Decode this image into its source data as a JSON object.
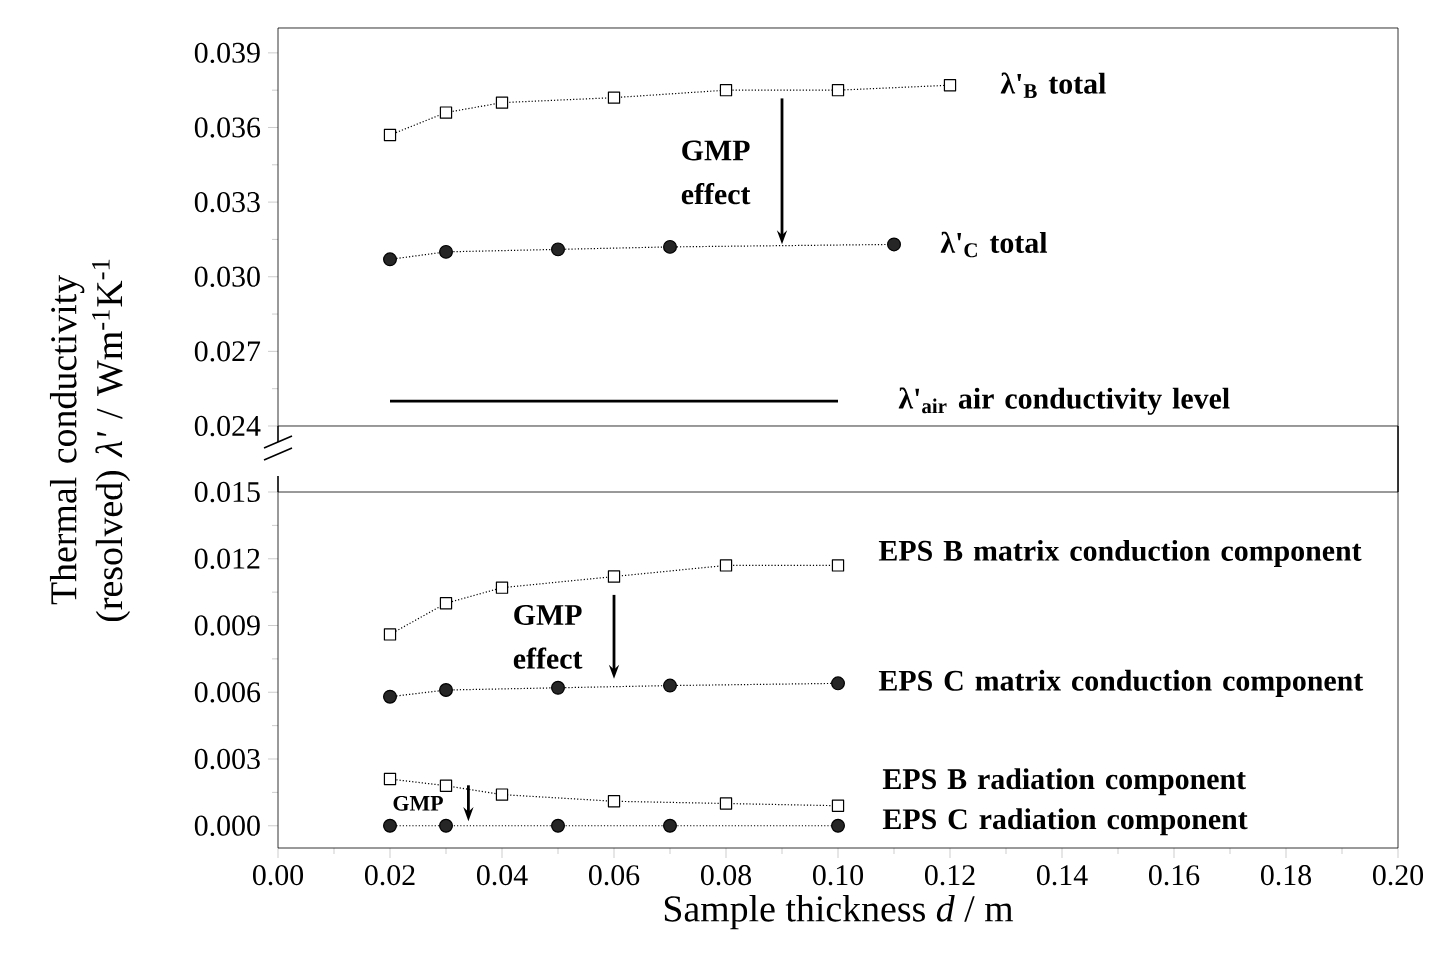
{
  "chart_data": [
    {
      "type": "line",
      "ylabel": "Thermal conductivity (resolved) *λ'* / Wm$^{-1}$K$^{-1}$",
      "xlim": [
        0,
        0.2
      ],
      "ylim": [
        0.024,
        0.04
      ],
      "tick_labels": "y",
      "yticks": [
        {
          "value": 0.024,
          "label": "0.024"
        },
        {
          "value": 0.027,
          "label": "0.027"
        },
        {
          "value": 0.03,
          "label": "0.030"
        },
        {
          "value": 0.033,
          "label": "0.033"
        },
        {
          "value": 0.036,
          "label": "0.036"
        },
        {
          "value": 0.039,
          "label": "0.039"
        }
      ],
      "series": [
        {
          "name": "λ'$_{B}$ total",
          "color": "#000000",
          "marker": "square",
          "line_style": "dotted",
          "x": [
            0.02,
            0.03,
            0.04,
            0.06,
            0.08,
            0.1,
            0.12
          ],
          "values": [
            0.0357,
            0.0366,
            0.037,
            0.0372,
            0.0375,
            0.0375,
            0.0377
          ]
        },
        {
          "name": "λ'$_{C}$ total",
          "color": "#000000",
          "marker": "circle",
          "line_style": "dotted",
          "x": [
            0.02,
            0.03,
            0.05,
            0.07,
            0.11
          ],
          "values": [
            0.0307,
            0.031,
            0.0311,
            0.0312,
            0.0313
          ]
        },
        {
          "name": "λ'$_{air}$ air conductivity level",
          "color": "#000000",
          "marker": "none",
          "line_style": "solid",
          "x": [
            0.02,
            0.1
          ],
          "values": [
            0.025,
            0.025
          ]
        }
      ],
      "annotations": [
        {
          "text": "GMP effect",
          "x": 0.09,
          "y": 0.0313
        }
      ]
    },
    {
      "type": "line",
      "xlabel": "Sample thickness *d* / m",
      "xlim": [
        0,
        0.2
      ],
      "ylim": [
        -0.001,
        0.015
      ],
      "xticks": [
        {
          "value": 0,
          "label": "0.00"
        },
        {
          "value": 0.02,
          "label": "0.02"
        },
        {
          "value": 0.04,
          "label": "0.04"
        },
        {
          "value": 0.06,
          "label": "0.06"
        },
        {
          "value": 0.08,
          "label": "0.08"
        },
        {
          "value": 0.1,
          "label": "0.10"
        },
        {
          "value": 0.12,
          "label": "0.12"
        },
        {
          "value": 0.14,
          "label": "0.14"
        },
        {
          "value": 0.16,
          "label": "0.16"
        },
        {
          "value": 0.18,
          "label": "0.18"
        },
        {
          "value": 0.2,
          "label": "0.20"
        }
      ],
      "yticks": [
        {
          "value": 0,
          "label": "0.000"
        },
        {
          "value": 0.003,
          "label": "0.003"
        },
        {
          "value": 0.006,
          "label": "0.006"
        },
        {
          "value": 0.009,
          "label": "0.009"
        },
        {
          "value": 0.012,
          "label": "0.012"
        },
        {
          "value": 0.015,
          "label": "0.015"
        }
      ],
      "series": [
        {
          "name": "EPS B matrix conduction component",
          "color": "#000000",
          "marker": "square",
          "line_style": "dotted",
          "x": [
            0.02,
            0.03,
            0.04,
            0.06,
            0.08,
            0.1
          ],
          "values": [
            0.0086,
            0.01,
            0.0107,
            0.0112,
            0.0117,
            0.0117
          ]
        },
        {
          "name": "EPS C matrix conduction component",
          "color": "#000000",
          "marker": "circle",
          "line_style": "dotted",
          "x": [
            0.02,
            0.03,
            0.05,
            0.07,
            0.1
          ],
          "values": [
            0.0058,
            0.0061,
            0.0062,
            0.0063,
            0.0064
          ]
        },
        {
          "name": "EPS B radiation component",
          "color": "#000000",
          "marker": "square",
          "line_style": "dotted",
          "x": [
            0.02,
            0.03,
            0.04,
            0.06,
            0.08,
            0.1
          ],
          "values": [
            0.0021,
            0.0018,
            0.0014,
            0.0011,
            0.001,
            0.0009
          ]
        },
        {
          "name": "EPS C radiation component",
          "color": "#000000",
          "marker": "circle",
          "line_style": "dotted",
          "x": [
            0.02,
            0.03,
            0.05,
            0.07,
            0.1
          ],
          "values": [
            0,
            0,
            0,
            0,
            0
          ]
        }
      ],
      "annotations": [
        {
          "text": "GMP effect",
          "x": 0.06,
          "y": 0.0066
        },
        {
          "text": "GMP",
          "x": 0.034,
          "y": 0.0002
        }
      ]
    }
  ]
}
